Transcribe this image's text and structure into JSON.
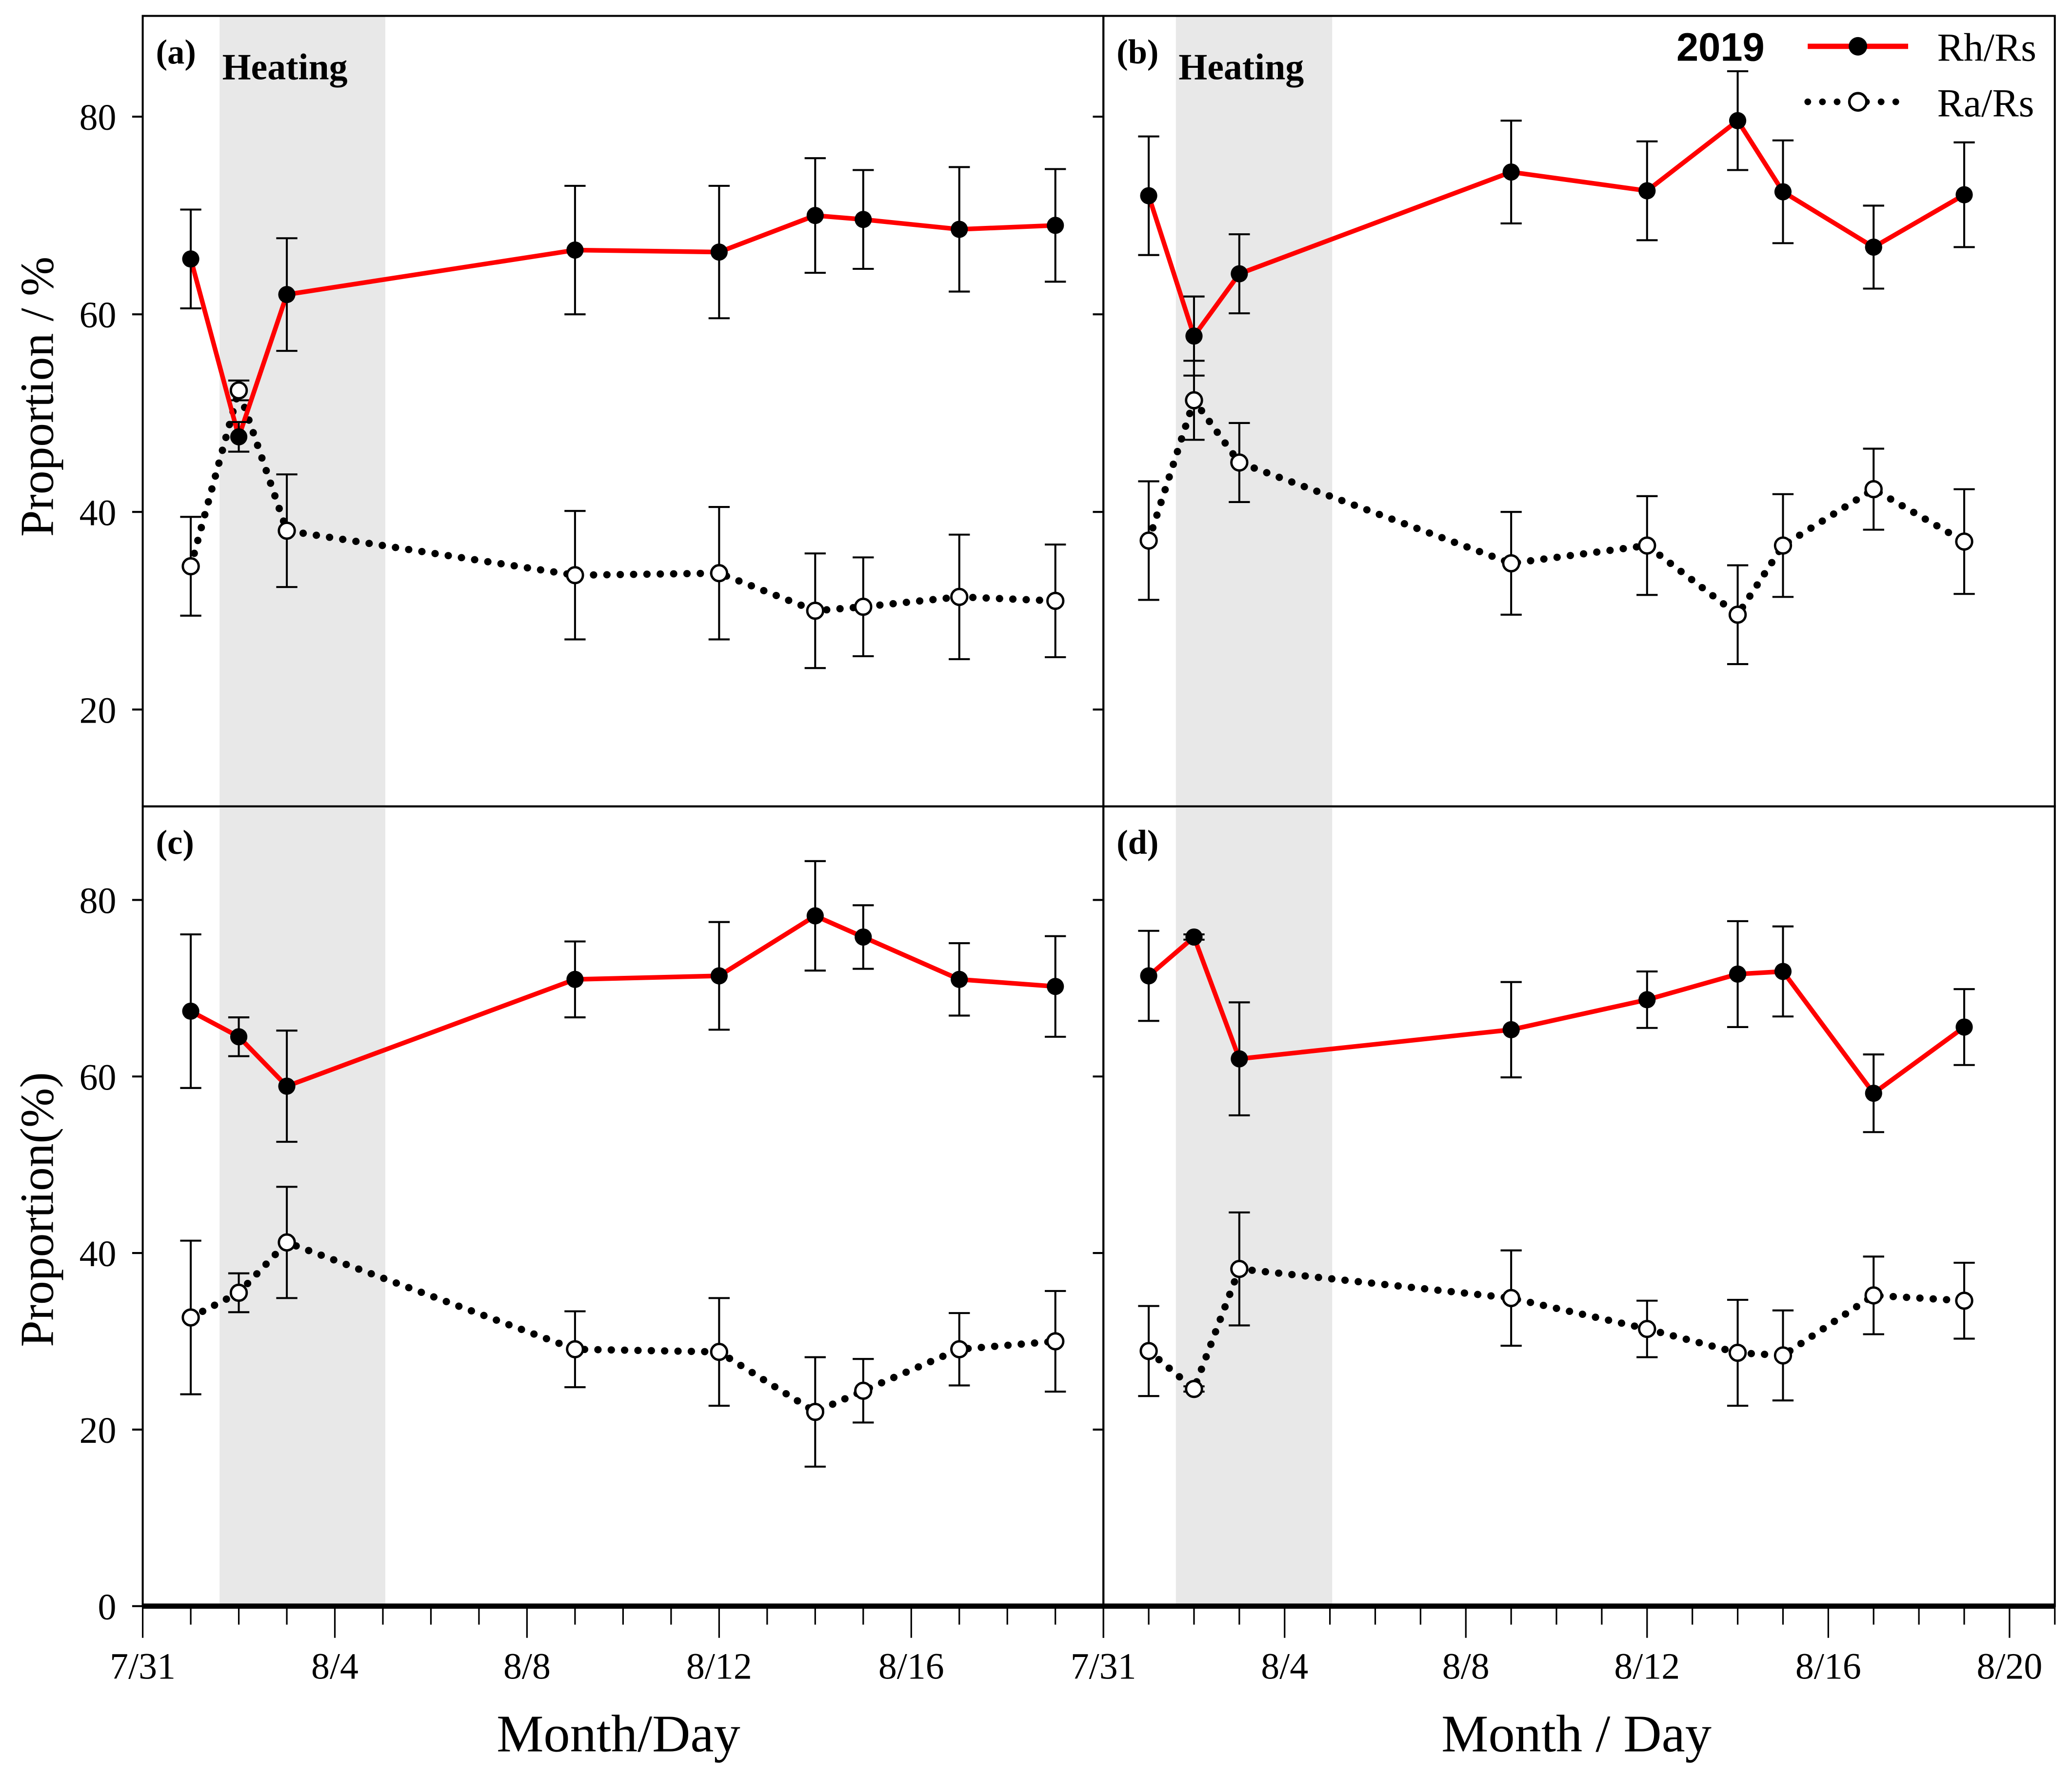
{
  "colors": {
    "rh": "#ff0000",
    "ra": "#000000",
    "heating": "#e8e8e8"
  },
  "shared": {
    "x_tick_labels": [
      "7/31",
      "8/4",
      "8/8",
      "8/12",
      "8/16",
      "8/20"
    ],
    "x_tick_days": [
      0,
      4,
      8,
      12,
      16,
      20
    ],
    "heating_label": "Heating",
    "heating_days": [
      1.6,
      5.05
    ],
    "legend_year": "2019",
    "legend": [
      "Rh/Rs",
      "Ra/Rs"
    ],
    "xlabel_left": "Month/Day",
    "xlabel_right": "Month / Day",
    "ylabel_top": "Proportion / %",
    "ylabel_bottom": "Proportion(%)"
  },
  "chart_data": [
    {
      "type": "line",
      "panel": "(a)",
      "xlim": [
        0,
        20
      ],
      "ylim": [
        10.2,
        90.2
      ],
      "yticks": [
        20,
        40,
        60,
        80
      ],
      "x": [
        1,
        2,
        3,
        9,
        12,
        14,
        15,
        17,
        19
      ],
      "series": [
        {
          "name": "Rh/Rs",
          "values": [
            65.6,
            47.6,
            62.0,
            66.5,
            66.3,
            70.0,
            69.6,
            68.6,
            69.0
          ],
          "err": [
            5.0,
            1.5,
            5.7,
            6.5,
            6.7,
            5.8,
            5.0,
            6.3,
            5.7
          ]
        },
        {
          "name": "Ra/Rs",
          "values": [
            34.5,
            52.3,
            38.1,
            33.6,
            33.8,
            30.0,
            30.4,
            31.4,
            31.0
          ],
          "err": [
            5.0,
            1.0,
            5.7,
            6.5,
            6.7,
            5.8,
            5.0,
            6.3,
            5.7
          ]
        }
      ]
    },
    {
      "type": "line",
      "panel": "(b)",
      "xlim": [
        0,
        21
      ],
      "ylim": [
        10.2,
        90.2
      ],
      "yticks": [
        20,
        40,
        60,
        80
      ],
      "x": [
        1,
        2,
        3,
        9,
        12,
        14,
        15,
        17,
        19
      ],
      "series": [
        {
          "name": "Rh/Rs",
          "values": [
            72.0,
            57.8,
            64.1,
            74.4,
            72.5,
            79.6,
            72.4,
            66.8,
            72.1
          ],
          "err": [
            6.0,
            4.0,
            4.0,
            5.2,
            5.0,
            5.0,
            5.2,
            4.2,
            5.3
          ]
        },
        {
          "name": "Ra/Rs",
          "values": [
            37.1,
            51.3,
            45.0,
            34.8,
            36.6,
            29.6,
            36.6,
            42.3,
            37.0
          ],
          "err": [
            6.0,
            4.0,
            4.0,
            5.2,
            5.0,
            5.0,
            5.2,
            4.1,
            5.3
          ]
        }
      ]
    },
    {
      "type": "line",
      "panel": "(c)",
      "xlim": [
        0,
        20
      ],
      "ylim": [
        0,
        90.6
      ],
      "yticks": [
        0,
        20,
        40,
        60,
        80
      ],
      "x": [
        1,
        2,
        3,
        9,
        12,
        14,
        15,
        17,
        19
      ],
      "series": [
        {
          "name": "Rh/Rs",
          "values": [
            67.4,
            64.5,
            58.9,
            71.0,
            71.4,
            78.2,
            75.8,
            71.0,
            70.2
          ],
          "err": [
            8.7,
            2.2,
            6.3,
            4.3,
            6.1,
            6.2,
            3.6,
            4.1,
            5.7
          ]
        },
        {
          "name": "Ra/Rs",
          "values": [
            32.7,
            35.5,
            41.2,
            29.1,
            28.8,
            22.0,
            24.4,
            29.1,
            30.0
          ],
          "err": [
            8.7,
            2.2,
            6.3,
            4.3,
            6.1,
            6.2,
            3.6,
            4.1,
            5.7
          ]
        }
      ]
    },
    {
      "type": "line",
      "panel": "(d)",
      "xlim": [
        0,
        21
      ],
      "ylim": [
        0,
        90.6
      ],
      "yticks": [
        0,
        20,
        40,
        60,
        80
      ],
      "x": [
        1,
        2,
        3,
        9,
        12,
        14,
        15,
        17,
        19
      ],
      "series": [
        {
          "name": "Rh/Rs",
          "values": [
            71.4,
            75.8,
            62.0,
            65.3,
            68.7,
            71.6,
            71.9,
            58.1,
            65.6
          ],
          "err": [
            5.1,
            0.3,
            6.4,
            5.4,
            3.2,
            6.0,
            5.1,
            4.4,
            4.3
          ]
        },
        {
          "name": "Ra/Rs",
          "values": [
            28.9,
            24.6,
            38.2,
            34.9,
            31.4,
            28.7,
            28.4,
            35.2,
            34.6
          ],
          "err": [
            5.1,
            0.3,
            6.4,
            5.4,
            3.2,
            6.0,
            5.1,
            4.4,
            4.3
          ]
        }
      ]
    }
  ]
}
